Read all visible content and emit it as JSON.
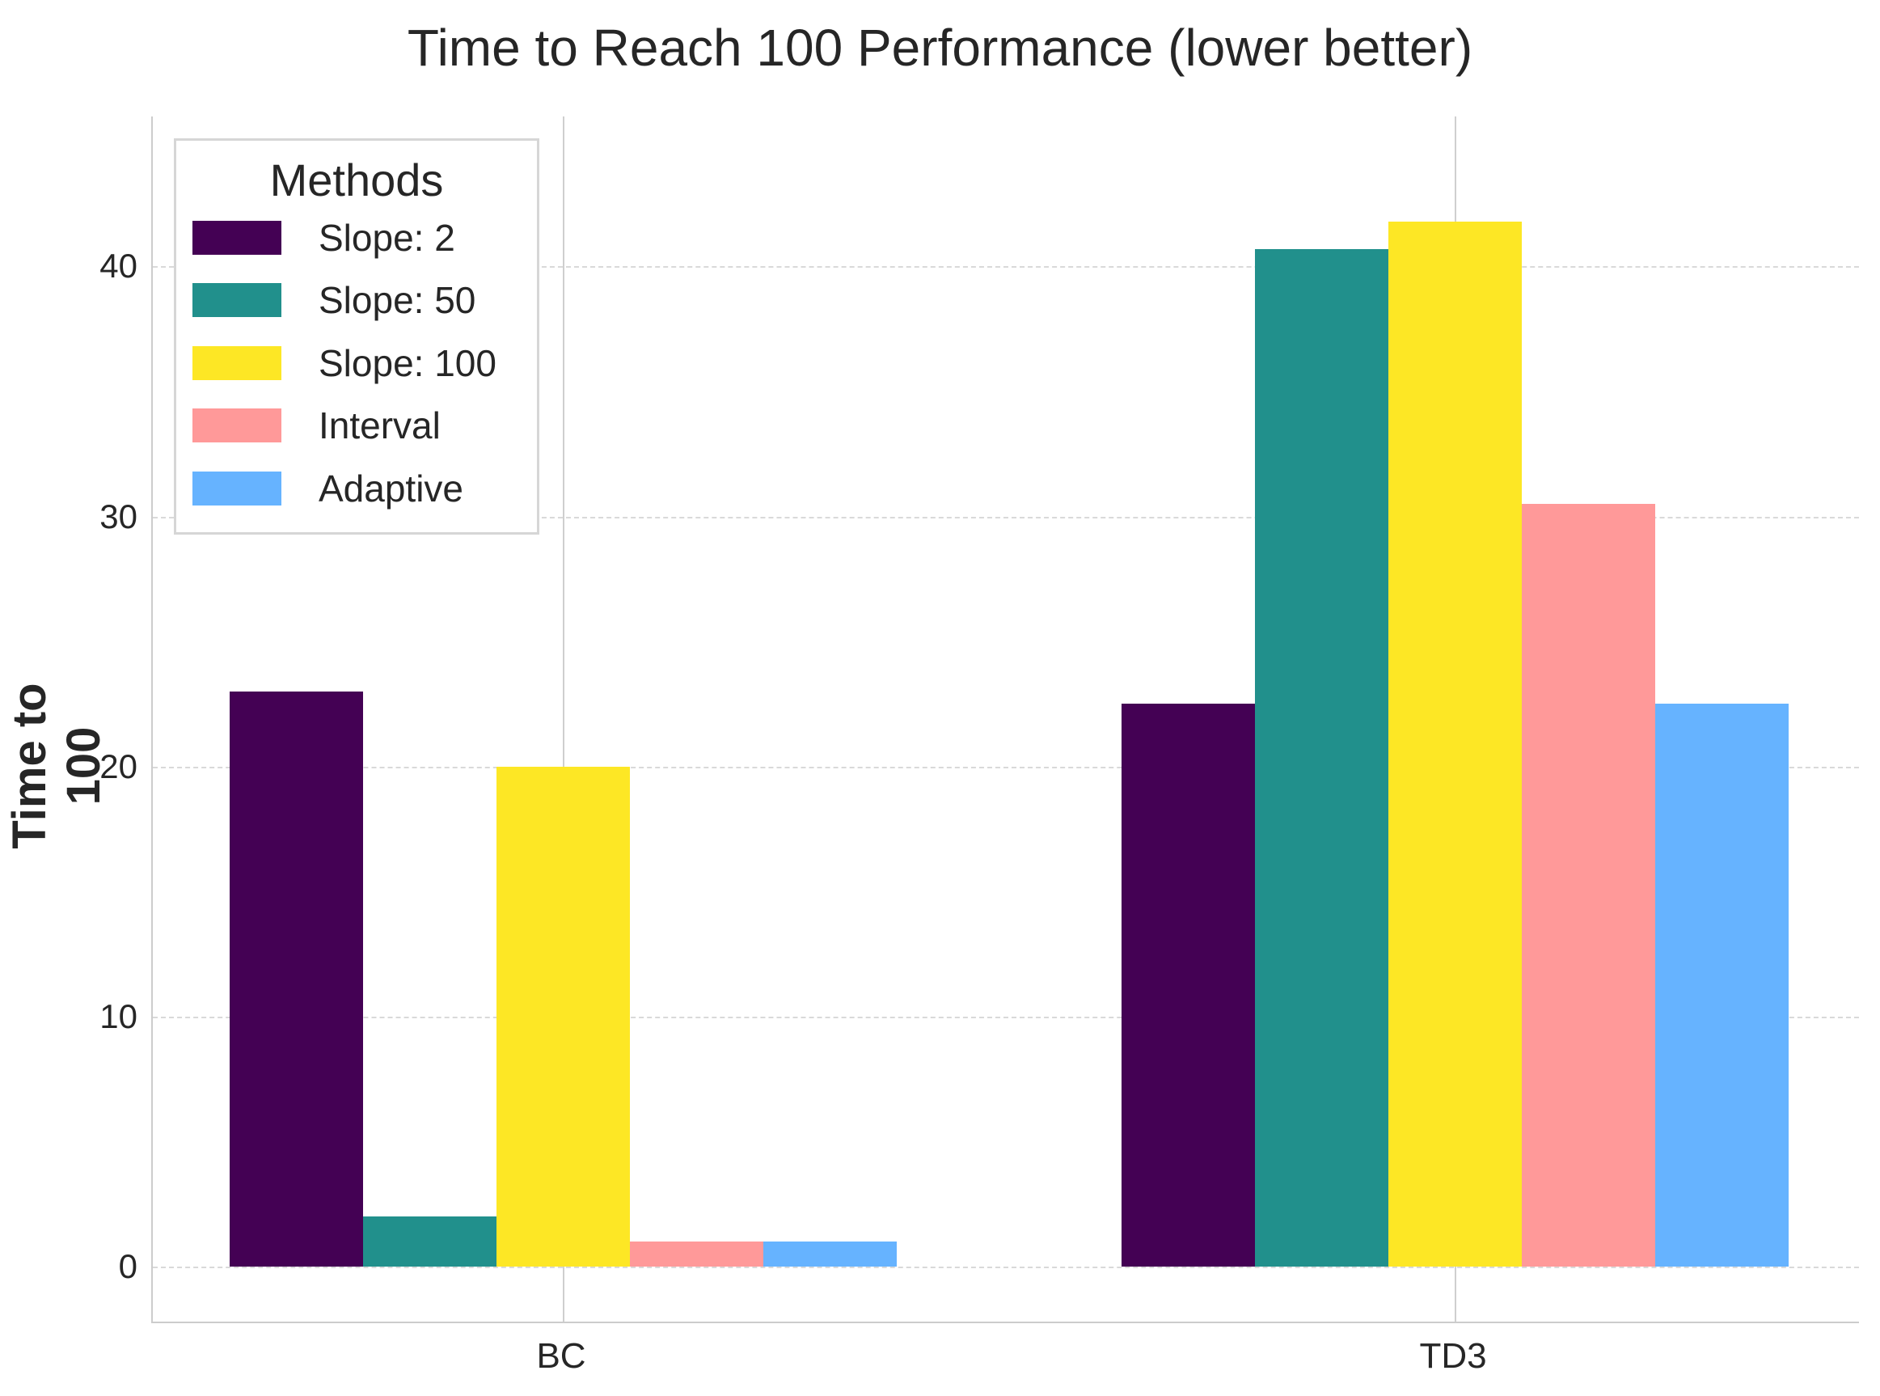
{
  "title": "Time to Reach 100 Performance (lower better)",
  "ylabel": "Time to 100",
  "legend": {
    "title": "Methods",
    "items": [
      {
        "label": "Slope: 2",
        "color": "#440154"
      },
      {
        "label": "Slope: 50",
        "color": "#21908c"
      },
      {
        "label": "Slope: 100",
        "color": "#fde725"
      },
      {
        "label": "Interval",
        "color": "#ff9999"
      },
      {
        "label": "Adaptive",
        "color": "#66b3ff"
      }
    ]
  },
  "yticks": [
    "0",
    "10",
    "20",
    "30",
    "40"
  ],
  "xticks": [
    "BC",
    "TD3"
  ],
  "chart_data": {
    "type": "bar",
    "title": "Time to Reach 100 Performance (lower better)",
    "xlabel": "",
    "ylabel": "Time to 100",
    "categories": [
      "BC",
      "TD3"
    ],
    "series": [
      {
        "name": "Slope: 2",
        "color": "#440154",
        "values": [
          23.0,
          22.5
        ]
      },
      {
        "name": "Slope: 50",
        "color": "#21908c",
        "values": [
          2.0,
          40.7
        ]
      },
      {
        "name": "Slope: 100",
        "color": "#fde725",
        "values": [
          20.0,
          41.8
        ]
      },
      {
        "name": "Interval",
        "color": "#ff9999",
        "values": [
          1.0,
          30.5
        ]
      },
      {
        "name": "Adaptive",
        "color": "#66b3ff",
        "values": [
          1.0,
          22.5
        ]
      }
    ],
    "ylim": [
      -2.2,
      46
    ],
    "yticks": [
      0,
      10,
      20,
      30,
      40
    ],
    "grid": "y dashed, x solid at category centers",
    "legend_position": "upper left"
  }
}
